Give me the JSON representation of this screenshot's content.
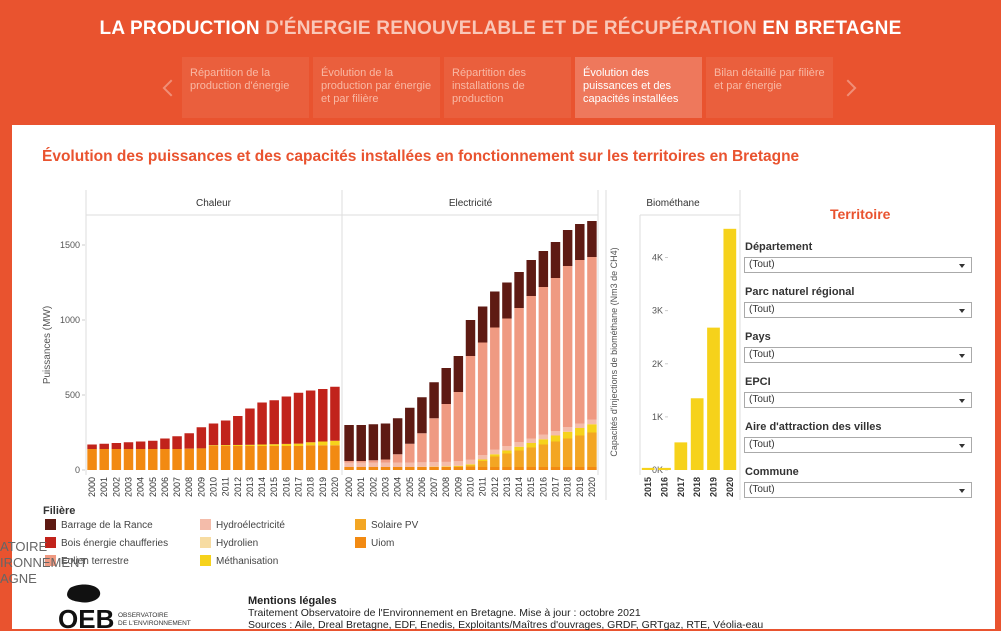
{
  "header": {
    "title_parts": [
      "LA PRODUCTION",
      "D'ÉNERGIE RENOUVELABLE ET DE RÉCUPÉRATION",
      "EN BRETAGNE"
    ]
  },
  "tabs": [
    "Répartition de la production d'énergie",
    "Évolution de la production par énergie et par filière",
    "Répartition des installations de production",
    "Évolution des puissances et des capacités installées",
    "Bilan détaillé par filière et par énergie"
  ],
  "active_tab": 3,
  "section_title": "Évolution des puissances et des capacités installées en fonctionnement sur les territoires en Bretagne",
  "chart_data": [
    {
      "type": "bar",
      "stacked": true,
      "panel_title": "Chaleur",
      "y_label": "Puissances (MW)",
      "categories": [
        "2000",
        "2001",
        "2002",
        "2003",
        "2004",
        "2005",
        "2006",
        "2007",
        "2008",
        "2009",
        "2010",
        "2011",
        "2012",
        "2013",
        "2014",
        "2015",
        "2016",
        "2017",
        "2018",
        "2019",
        "2020"
      ],
      "ylim": [
        0,
        1700
      ],
      "yticks": [
        0,
        500,
        1000,
        1500
      ],
      "series": [
        {
          "name": "Uiom",
          "color": "#f28a12",
          "values": [
            140,
            140,
            140,
            140,
            140,
            140,
            140,
            140,
            140,
            140,
            160,
            160,
            160,
            160,
            160,
            160,
            160,
            160,
            165,
            165,
            165
          ]
        },
        {
          "name": "Méthanisation",
          "color": "#f6d21b",
          "values": [
            0,
            0,
            0,
            0,
            0,
            0,
            0,
            0,
            2,
            3,
            5,
            6,
            7,
            8,
            10,
            12,
            14,
            16,
            20,
            25,
            30
          ]
        },
        {
          "name": "Bois énergie chaufferies",
          "color": "#c1231b",
          "values": [
            30,
            35,
            40,
            45,
            50,
            55,
            70,
            85,
            103,
            142,
            145,
            164,
            193,
            242,
            280,
            293,
            316,
            339,
            345,
            350,
            360
          ]
        }
      ]
    },
    {
      "type": "bar",
      "stacked": true,
      "panel_title": "Electricité",
      "categories": [
        "2000",
        "2001",
        "2002",
        "2003",
        "2004",
        "2005",
        "2006",
        "2007",
        "2008",
        "2009",
        "2010",
        "2011",
        "2012",
        "2013",
        "2014",
        "2015",
        "2016",
        "2017",
        "2018",
        "2019",
        "2020"
      ],
      "ylim": [
        0,
        1700
      ],
      "series": [
        {
          "name": "Uiom",
          "color": "#f28a12",
          "values": [
            20,
            20,
            20,
            20,
            20,
            20,
            20,
            20,
            20,
            20,
            20,
            20,
            20,
            20,
            20,
            20,
            20,
            20,
            20,
            20,
            20
          ]
        },
        {
          "name": "Solaire PV",
          "color": "#f3a623",
          "values": [
            0,
            0,
            0,
            0,
            0,
            0,
            0,
            0,
            1,
            3,
            10,
            40,
            70,
            90,
            110,
            130,
            150,
            170,
            190,
            210,
            230
          ]
        },
        {
          "name": "Méthanisation",
          "color": "#f6d21b",
          "values": [
            0,
            0,
            0,
            0,
            0,
            0,
            1,
            2,
            3,
            5,
            8,
            10,
            15,
            20,
            25,
            30,
            35,
            40,
            45,
            50,
            55
          ]
        },
        {
          "name": "Hydroélectricité",
          "color": "#f4bcaa",
          "values": [
            30,
            30,
            30,
            30,
            30,
            30,
            30,
            30,
            30,
            30,
            30,
            30,
            30,
            30,
            30,
            30,
            30,
            30,
            30,
            30,
            30
          ]
        },
        {
          "name": "Eolien terrestre",
          "color": "#ef9a82",
          "values": [
            10,
            10,
            15,
            20,
            55,
            125,
            194,
            293,
            386,
            462,
            692,
            750,
            815,
            850,
            895,
            950,
            985,
            1020,
            1075,
            1090,
            1085
          ]
        },
        {
          "name": "Barrage de la Rance",
          "color": "#5e1a13",
          "values": [
            240,
            240,
            240,
            240,
            240,
            240,
            240,
            240,
            240,
            240,
            240,
            240,
            240,
            240,
            240,
            240,
            240,
            240,
            240,
            240,
            240
          ]
        }
      ]
    },
    {
      "type": "bar",
      "stacked": true,
      "panel_title": "Biométhane",
      "y_label": "Capacités d'injections de biométhane (Nm3 de CH4)",
      "categories": [
        "2015",
        "2016",
        "2017",
        "2018",
        "2019",
        "2020"
      ],
      "ylim": [
        0,
        4800
      ],
      "yticks": [
        {
          "value": 0,
          "label": "0K"
        },
        {
          "value": 1000,
          "label": "1K"
        },
        {
          "value": 2000,
          "label": "2K"
        },
        {
          "value": 3000,
          "label": "3K"
        },
        {
          "value": 4000,
          "label": "4K"
        }
      ],
      "series": [
        {
          "name": "Méthanisation",
          "color": "#f6d21b",
          "values": [
            40,
            40,
            520,
            1350,
            2680,
            4540
          ]
        }
      ]
    }
  ],
  "legend": {
    "title": "Filière",
    "items": [
      {
        "name": "Barrage de la Rance",
        "color": "#5e1a13"
      },
      {
        "name": "Bois énergie chaufferies",
        "color": "#c1231b"
      },
      {
        "name": "Eolien terrestre",
        "color": "#ef9a82"
      },
      {
        "name": "Hydroélectricité",
        "color": "#f4bcaa"
      },
      {
        "name": "Hydrolien",
        "color": "#f7dca2"
      },
      {
        "name": "Méthanisation",
        "color": "#f6d21b"
      },
      {
        "name": "Solaire PV",
        "color": "#f3a623"
      },
      {
        "name": "Uiom",
        "color": "#f28a12"
      }
    ]
  },
  "filters": {
    "title": "Territoire",
    "items": [
      {
        "label": "Département",
        "value": "(Tout)"
      },
      {
        "label": "Parc naturel régional",
        "value": "(Tout)"
      },
      {
        "label": "Pays",
        "value": "(Tout)"
      },
      {
        "label": "EPCI",
        "value": "(Tout)"
      },
      {
        "label": "Aire d'attraction des villes",
        "value": "(Tout)"
      },
      {
        "label": "Commune",
        "value": "(Tout)"
      }
    ]
  },
  "overlay_text": [
    "ATOIRE",
    "IRONNEMENT",
    "AGNE"
  ],
  "logo": {
    "acronym": "OEB",
    "lines": [
      "OBSERVATOIRE",
      "DE L'ENVIRONNEMENT"
    ]
  },
  "footer": {
    "heading": "Mentions légales",
    "lines": [
      "Traitement Observatoire de l'Environnement en Bretagne. Mise à jour : octobre 2021",
      "Sources : Aile, Dreal Bretagne, EDF, Enedis, Exploitants/Maîtres d'ouvrages, GRDF, GRTgaz, RTE, Véolia-eau"
    ]
  }
}
